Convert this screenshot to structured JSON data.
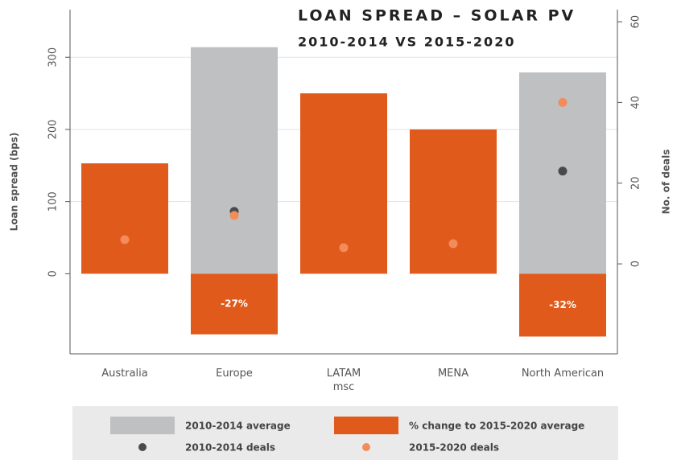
{
  "chart_data": {
    "type": "bar",
    "title": "LOAN SPREAD – SOLAR PV",
    "subtitle": "2010-2014 VS 2015-2020",
    "y_label": "Loan spread (bps)",
    "y2_label": "No. of deals",
    "categories": [
      "Australia",
      "Europe",
      "LATAM\nmsc",
      "MENA",
      "North American"
    ],
    "series": [
      {
        "name": "2010-2014 average",
        "mark": "bar",
        "color": "#bfc0c2",
        "values": [
          null,
          314,
          null,
          null,
          279
        ]
      },
      {
        "name": "% change to 2015-2020 average",
        "mark": "bar",
        "color": "#e05a1b",
        "values": [
          153,
          -84,
          250,
          200,
          -87
        ]
      },
      {
        "name": "2010-2014 deals",
        "mark": "dot",
        "axis": "y2",
        "color": "#4a4a4a",
        "values": [
          null,
          13,
          null,
          null,
          23
        ]
      },
      {
        "name": "2015-2020 deals",
        "mark": "dot",
        "axis": "y2",
        "color": "#f28c5a",
        "values": [
          6,
          12,
          4,
          5,
          40
        ]
      }
    ],
    "annotations": [
      {
        "text": "-27%",
        "x": "Europe"
      },
      {
        "text": "-32%",
        "x": "North American"
      }
    ],
    "ylim": [
      -111,
      366
    ],
    "yticks": [
      0,
      100,
      200,
      300
    ],
    "y2lim": [
      -22.3,
      63
    ],
    "y2ticks": [
      0,
      20,
      40,
      60
    ],
    "grid": true
  }
}
